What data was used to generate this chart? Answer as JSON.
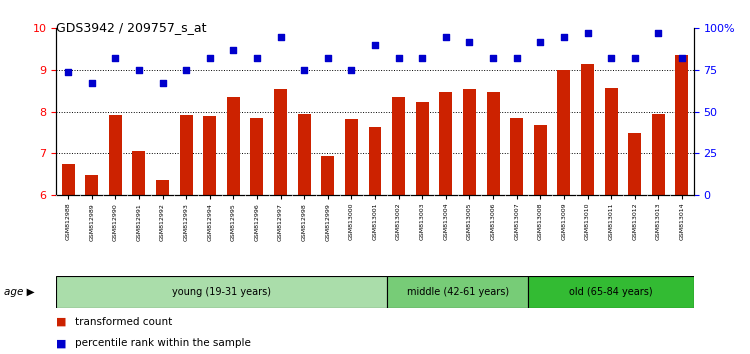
{
  "title": "GDS3942 / 209757_s_at",
  "samples": [
    "GSM812988",
    "GSM812989",
    "GSM812990",
    "GSM812991",
    "GSM812992",
    "GSM812993",
    "GSM812994",
    "GSM812995",
    "GSM812996",
    "GSM812997",
    "GSM812998",
    "GSM812999",
    "GSM813000",
    "GSM813001",
    "GSM813002",
    "GSM813003",
    "GSM813004",
    "GSM813005",
    "GSM813006",
    "GSM813007",
    "GSM813008",
    "GSM813009",
    "GSM813010",
    "GSM813011",
    "GSM813012",
    "GSM813013",
    "GSM813014"
  ],
  "bar_values": [
    6.75,
    6.48,
    7.92,
    7.05,
    6.35,
    7.92,
    7.9,
    8.35,
    7.85,
    8.55,
    7.95,
    6.94,
    7.82,
    7.62,
    8.35,
    8.22,
    8.48,
    8.55,
    8.48,
    7.85,
    7.68,
    9.0,
    9.15,
    8.57,
    7.48,
    7.95,
    9.35
  ],
  "percentile_values": [
    74,
    67,
    82,
    75,
    67,
    75,
    82,
    87,
    82,
    95,
    75,
    82,
    75,
    90,
    82,
    82,
    95,
    92,
    82,
    82,
    92,
    95,
    97,
    82,
    82,
    97,
    82
  ],
  "bar_color": "#CC2200",
  "scatter_color": "#0000CC",
  "ylim_left": [
    6,
    10
  ],
  "ylim_right": [
    0,
    100
  ],
  "yticks_left": [
    6,
    7,
    8,
    9,
    10
  ],
  "ytick_labels_left": [
    "6",
    "7",
    "8",
    "9",
    "10"
  ],
  "yticks_right": [
    0,
    25,
    50,
    75,
    100
  ],
  "ytick_labels_right": [
    "0",
    "25",
    "50",
    "75",
    "100%"
  ],
  "groups": [
    {
      "label": "young (19-31 years)",
      "start": 0,
      "end": 14,
      "color": "#AADDAA"
    },
    {
      "label": "middle (42-61 years)",
      "start": 14,
      "end": 20,
      "color": "#77CC77"
    },
    {
      "label": "old (65-84 years)",
      "start": 20,
      "end": 27,
      "color": "#33BB33"
    }
  ],
  "age_label": "age",
  "legend_bar_label": "transformed count",
  "legend_scatter_label": "percentile rank within the sample",
  "bg_color": "#FFFFFF",
  "tick_area_color": "#CCCCCC",
  "dotted_lines": [
    7,
    8,
    9
  ]
}
